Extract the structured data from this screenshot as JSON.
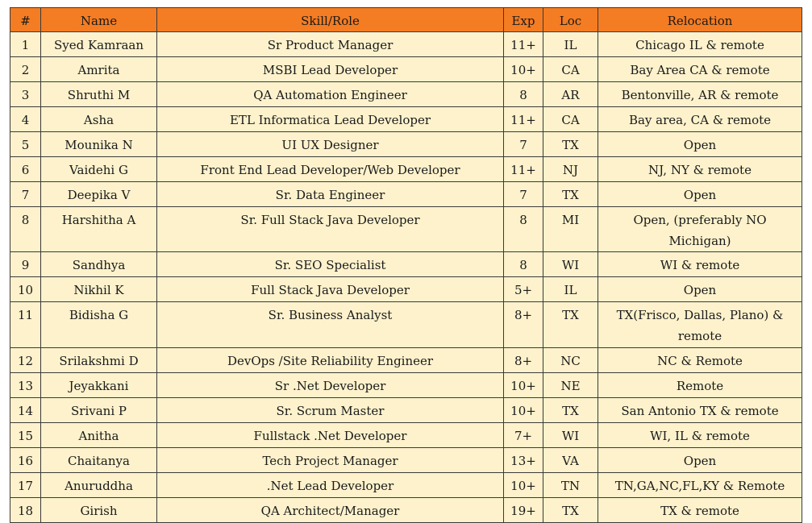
{
  "table": {
    "headers": [
      "#",
      "Name",
      "Skill/Role",
      "Exp",
      "Loc",
      "Relocation"
    ],
    "rows": [
      [
        "1",
        "Syed Kamraan",
        "Sr Product Manager",
        "11+",
        "IL",
        "Chicago IL & remote"
      ],
      [
        "2",
        "Amrita",
        "MSBI Lead Developer",
        "10+",
        "CA",
        "Bay Area CA & remote"
      ],
      [
        "3",
        "Shruthi M",
        "QA Automation Engineer",
        "8",
        "AR",
        "Bentonville, AR & remote"
      ],
      [
        "4",
        "Asha",
        "ETL Informatica Lead Developer",
        "11+",
        "CA",
        "Bay area, CA & remote"
      ],
      [
        "5",
        "Mounika N",
        "UI UX Designer",
        "7",
        "TX",
        "Open"
      ],
      [
        "6",
        "Vaidehi G",
        "Front End Lead Developer/Web Developer",
        "11+",
        "NJ",
        "NJ, NY & remote"
      ],
      [
        "7",
        "Deepika V",
        "Sr. Data Engineer",
        "7",
        "TX",
        "Open"
      ],
      [
        "8",
        "Harshitha A",
        "Sr. Full Stack Java Developer",
        "8",
        "MI",
        "Open, (preferably NO Michigan)"
      ],
      [
        "9",
        "Sandhya",
        "Sr. SEO Specialist",
        "8",
        "WI",
        "WI & remote"
      ],
      [
        "10",
        "Nikhil K",
        "Full Stack Java Developer",
        "5+",
        "IL",
        "Open"
      ],
      [
        "11",
        "Bidisha G",
        "Sr. Business Analyst",
        "8+",
        "TX",
        "TX(Frisco, Dallas, Plano) & remote"
      ],
      [
        "12",
        "Srilakshmi D",
        "DevOps /Site Reliability Engineer",
        "8+",
        "NC",
        "NC & Remote"
      ],
      [
        "13",
        "Jeyakkani",
        "Sr .Net Developer",
        "10+",
        "NE",
        "Remote"
      ],
      [
        "14",
        "Srivani P",
        "Sr. Scrum Master",
        "10+",
        "TX",
        "San Antonio TX & remote"
      ],
      [
        "15",
        "Anitha",
        "Fullstack .Net Developer",
        "7+",
        "WI",
        "WI, IL & remote"
      ],
      [
        "16",
        "Chaitanya",
        "Tech Project Manager",
        "13+",
        "VA",
        "Open"
      ],
      [
        "17",
        "Anuruddha",
        ".Net Lead Developer",
        "10+",
        "TN",
        "TN,GA,NC,FL,KY & Remote"
      ],
      [
        "18",
        "Girish",
        "QA Architect/Manager",
        "19+",
        "TX",
        "TX & remote"
      ]
    ]
  },
  "colors": {
    "header_bg": "#f47c22",
    "row_bg": "#fdf2cc",
    "border": "#3a3a3a"
  }
}
